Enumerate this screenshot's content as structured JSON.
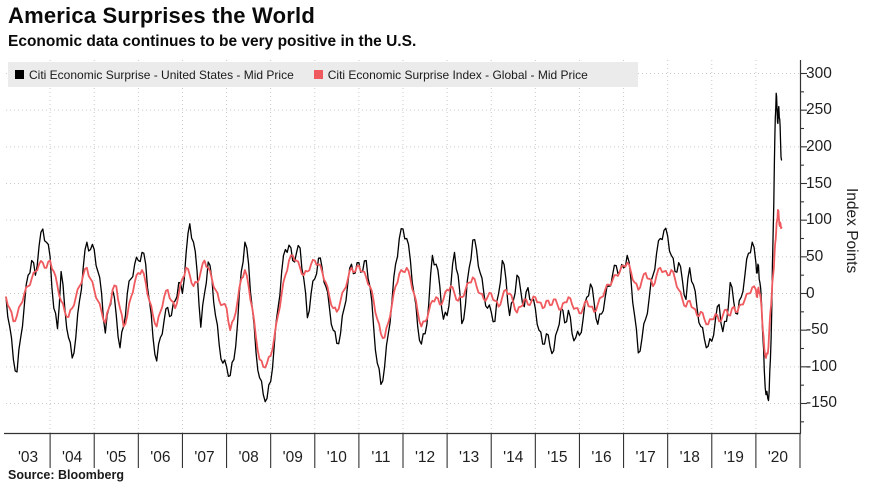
{
  "header": {
    "title": "America Surprises the World",
    "subtitle": "Economic data continues to be very positive in the U.S."
  },
  "source": "Source: Bloomberg",
  "colors": {
    "us_line": "#000000",
    "global_line": "#ef5a5e",
    "grid": "#c9c9c9",
    "axis": "#333333",
    "legend_bg": "#ebebeb"
  },
  "chart_data": {
    "type": "line",
    "title": "America Surprises the World",
    "xlabel": "",
    "ylabel": "Index Points",
    "x_axis": {
      "tick_labels": [
        "'03",
        "'04",
        "'05",
        "'06",
        "'07",
        "'08",
        "'09",
        "'10",
        "'11",
        "'12",
        "'13",
        "'14",
        "'15",
        "'16",
        "'17",
        "'18",
        "'19",
        "'20"
      ],
      "range_years": [
        2003,
        2021
      ]
    },
    "y_axis": {
      "title": "Index Points",
      "major_ticks": [
        300,
        250,
        200,
        150,
        100,
        50,
        0,
        -50,
        -100,
        -150
      ],
      "minor_tick_step": 25,
      "range": [
        -190,
        320
      ],
      "side": "right"
    },
    "grid": "dotted",
    "legend_position": "top-left",
    "render_jitter": {
      "note": "high-frequency weekly noise amplitude seen in original",
      "us": 7,
      "global": 3.5
    },
    "series": [
      {
        "name": "Citi Economic Surprise - United States - Mid Price",
        "color": "#000000",
        "width": 1.3,
        "monthly": {
          "start_year": 2003,
          "values": [
            -5,
            -45,
            -90,
            -107,
            -60,
            -15,
            25,
            45,
            25,
            65,
            88,
            70,
            50,
            -20,
            -48,
            30,
            -20,
            -60,
            -88,
            -60,
            -10,
            35,
            70,
            60,
            60,
            30,
            0,
            -54,
            -20,
            5,
            -30,
            -74,
            -45,
            0,
            20,
            40,
            45,
            56,
            40,
            -10,
            -60,
            -92,
            -60,
            -37,
            -19,
            -30,
            -10,
            15,
            0,
            55,
            95,
            70,
            30,
            -46,
            0,
            43,
            20,
            -30,
            -70,
            -95,
            -100,
            -112,
            -90,
            -40,
            30,
            70,
            40,
            -20,
            -80,
            -115,
            -138,
            -143,
            -120,
            -70,
            -20,
            30,
            60,
            66,
            45,
            55,
            62,
            20,
            -33,
            0,
            20,
            48,
            35,
            10,
            -20,
            -50,
            -68,
            -55,
            -20,
            15,
            40,
            28,
            42,
            30,
            45,
            10,
            -45,
            -95,
            -124,
            -100,
            -55,
            -10,
            40,
            75,
            88,
            75,
            45,
            0,
            -45,
            -69,
            -55,
            -15,
            52,
            40,
            10,
            -35,
            -30,
            10,
            56,
            25,
            -41,
            -15,
            35,
            73,
            60,
            28,
            0,
            -20,
            -25,
            -38,
            0,
            45,
            20,
            -30,
            -10,
            25,
            5,
            -18,
            8,
            -10,
            -20,
            -50,
            -69,
            -55,
            -72,
            -78,
            -50,
            -20,
            -40,
            -23,
            -55,
            -60,
            -57,
            -35,
            -5,
            13,
            -12,
            -42,
            -28,
            -5,
            10,
            25,
            38,
            30,
            35,
            52,
            20,
            -30,
            -81,
            -62,
            -35,
            -5,
            25,
            55,
            75,
            86,
            78,
            52,
            30,
            42,
            18,
            -8,
            35,
            12,
            -20,
            -45,
            -62,
            -72,
            -65,
            -35,
            -15,
            -52,
            -38,
            15,
            -12,
            -28,
            -5,
            25,
            55,
            70
          ]
        },
        "points_2020": [
          [
            2020.0,
            42
          ],
          [
            2020.03,
            28
          ],
          [
            2020.06,
            38
          ],
          [
            2020.09,
            15
          ],
          [
            2020.13,
            -15
          ],
          [
            2020.16,
            -60
          ],
          [
            2020.19,
            -105
          ],
          [
            2020.23,
            -138
          ],
          [
            2020.27,
            -143
          ],
          [
            2020.3,
            -135
          ],
          [
            2020.33,
            -90
          ],
          [
            2020.36,
            -20
          ],
          [
            2020.39,
            80
          ],
          [
            2020.42,
            180
          ],
          [
            2020.44,
            240
          ],
          [
            2020.46,
            273
          ],
          [
            2020.48,
            250
          ],
          [
            2020.5,
            232
          ],
          [
            2020.52,
            255
          ],
          [
            2020.54,
            238
          ],
          [
            2020.56,
            205
          ],
          [
            2020.58,
            182
          ]
        ]
      },
      {
        "name": "Citi Economic Surprise Index - Global - Mid Price",
        "color": "#ef5a5e",
        "width": 1.8,
        "monthly": {
          "start_year": 2003,
          "values": [
            -5,
            -20,
            -38,
            -30,
            -15,
            0,
            10,
            20,
            30,
            40,
            42,
            35,
            45,
            30,
            10,
            -10,
            -25,
            -32,
            -20,
            -5,
            10,
            25,
            35,
            20,
            5,
            -10,
            -25,
            -40,
            -20,
            5,
            10,
            -20,
            -45,
            -30,
            -5,
            15,
            28,
            32,
            15,
            -10,
            -30,
            -45,
            -25,
            -5,
            5,
            -10,
            -20,
            0,
            20,
            35,
            25,
            10,
            15,
            30,
            45,
            35,
            20,
            5,
            -10,
            -15,
            -20,
            -50,
            -35,
            -10,
            20,
            32,
            10,
            -20,
            -60,
            -90,
            -100,
            -95,
            -85,
            -60,
            -30,
            0,
            25,
            45,
            52,
            45,
            35,
            25,
            30,
            40,
            45,
            40,
            30,
            15,
            -5,
            -20,
            -25,
            -10,
            5,
            20,
            35,
            30,
            38,
            30,
            22,
            10,
            -10,
            -35,
            -55,
            -60,
            -40,
            -15,
            10,
            27,
            30,
            35,
            20,
            0,
            -25,
            -45,
            -38,
            -25,
            -10,
            -5,
            -15,
            -8,
            5,
            10,
            0,
            -10,
            -5,
            5,
            15,
            22,
            10,
            0,
            -8,
            -5,
            0,
            -10,
            -18,
            -5,
            5,
            0,
            -12,
            -26,
            -18,
            -8,
            -15,
            -10,
            -5,
            -12,
            -20,
            -10,
            -16,
            -8,
            -15,
            -22,
            -12,
            -5,
            -15,
            -20,
            -27,
            -20,
            -10,
            -18,
            -25,
            -15,
            -5,
            5,
            12,
            18,
            25,
            30,
            38,
            42,
            30,
            15,
            5,
            18,
            28,
            20,
            10,
            25,
            35,
            30,
            25,
            32,
            20,
            5,
            -8,
            -18,
            -10,
            -20,
            -30,
            -25,
            -35,
            -42,
            -35,
            -28,
            -38,
            -30,
            -22,
            -30,
            -18,
            -25,
            -15,
            -8,
            0,
            8
          ]
        },
        "points_2020": [
          [
            2020.0,
            5
          ],
          [
            2020.03,
            -5
          ],
          [
            2020.06,
            8
          ],
          [
            2020.09,
            0
          ],
          [
            2020.13,
            -20
          ],
          [
            2020.16,
            -50
          ],
          [
            2020.19,
            -75
          ],
          [
            2020.23,
            -88
          ],
          [
            2020.27,
            -82
          ],
          [
            2020.3,
            -55
          ],
          [
            2020.33,
            -25
          ],
          [
            2020.36,
            0
          ],
          [
            2020.39,
            25
          ],
          [
            2020.42,
            50
          ],
          [
            2020.44,
            70
          ],
          [
            2020.46,
            85
          ],
          [
            2020.48,
            100
          ],
          [
            2020.5,
            114
          ],
          [
            2020.52,
            105
          ],
          [
            2020.54,
            92
          ],
          [
            2020.56,
            95
          ],
          [
            2020.58,
            90
          ]
        ]
      }
    ]
  }
}
